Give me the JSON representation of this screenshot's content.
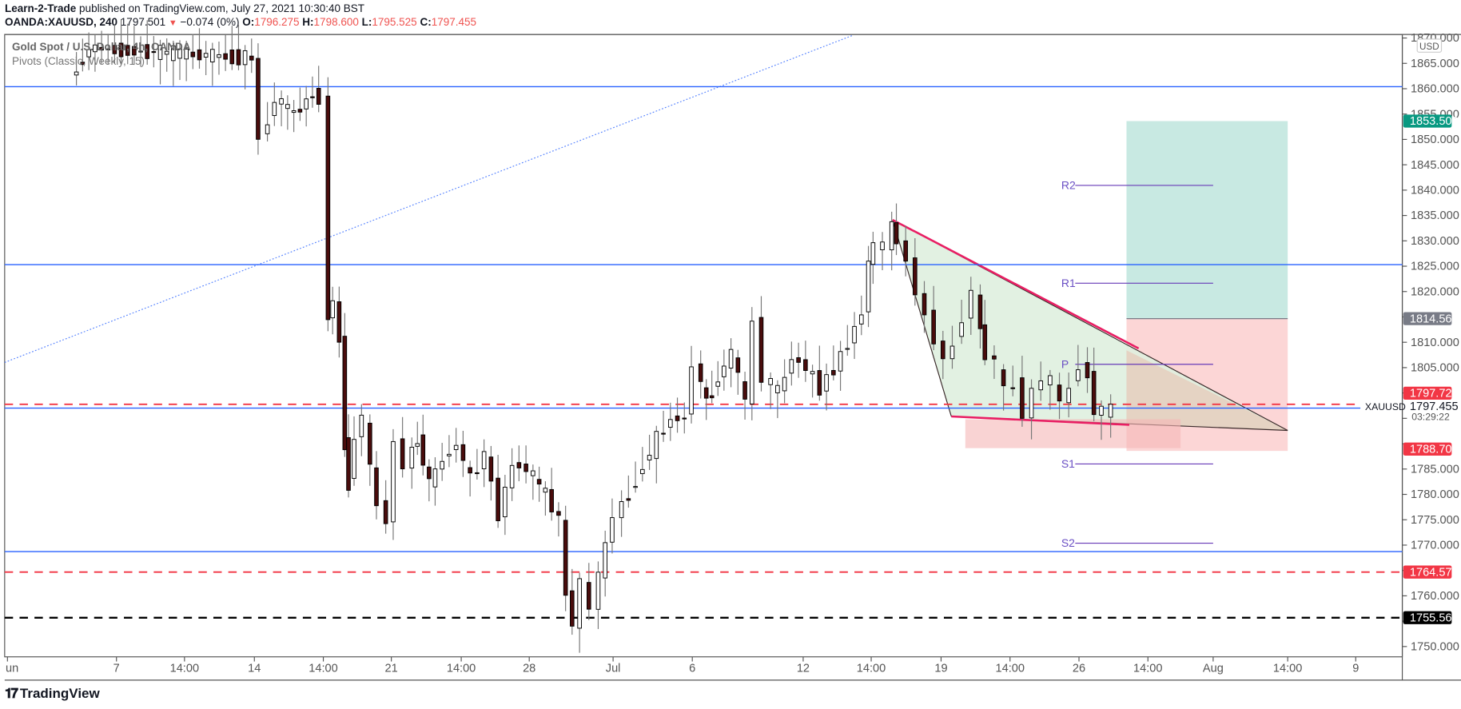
{
  "header": {
    "publisher": "Learn-2-Trade",
    "published_text": "published on TradingView.com, July 27, 2021 10:30:40 BST",
    "symbol_line": "OANDA:XAUUSD, 240",
    "last_price": "1797.501",
    "change": "−0.074 (0%)",
    "o_label": "O:",
    "o_value": "1796.275",
    "h_label": "H:",
    "h_value": "1798.600",
    "l_label": "L:",
    "l_value": "1795.525",
    "c_label": "C:",
    "c_value": "1797.455"
  },
  "legend": {
    "title": "Gold Spot / U.S. Dollar, 4h, OANDA",
    "indicator": "Pivots (Classic, Weekly, 15)"
  },
  "axis": {
    "currency": "USD",
    "ticks": [
      "1870.000",
      "1865.000",
      "1860.000",
      "1855.000",
      "1850.000",
      "1845.000",
      "1840.000",
      "1835.000",
      "1830.000",
      "1825.000",
      "1820.000",
      "1815.000",
      "1810.000",
      "1805.000",
      "1800.000",
      "1795.000",
      "1790.000",
      "1785.000",
      "1780.000",
      "1775.000",
      "1770.000",
      "1765.000",
      "1760.000",
      "1755.000",
      "1750.000"
    ],
    "price_tags": [
      {
        "value": "1853.500",
        "color": "#089981"
      },
      {
        "value": "1814.562",
        "color": "#787b86"
      },
      {
        "value": "1797.724",
        "color": "#f23645"
      },
      {
        "value": "1788.706",
        "color": "#f23645"
      },
      {
        "value": "1764.570",
        "color": "#f23645"
      },
      {
        "value": "1755.565",
        "color": "#000000"
      }
    ],
    "current_symbol": "XAUUSD",
    "current_price": "1797.455",
    "countdown": "03:29:22"
  },
  "time_axis": {
    "labels": [
      "Jun",
      "7",
      "14:00",
      "14",
      "14:00",
      "21",
      "14:00",
      "28",
      "Jul",
      "6",
      "12",
      "14:00",
      "19",
      "14:00",
      "26",
      "14:00",
      "Aug",
      "14:00",
      "9"
    ]
  },
  "pivots": {
    "R2": "R2",
    "R1": "R1",
    "P": "P",
    "S1": "S1",
    "S2": "S2"
  },
  "branding": {
    "logo_text": "TradingView"
  },
  "colors": {
    "up_candle": "#ffffff",
    "down_candle": "#4a0c0c",
    "horizontal_line": "#2962ff",
    "red_dashed": "#f23645",
    "black_dashed": "#000000",
    "pivot": "#673ab7",
    "trendline": "#e91e63",
    "profit_zone": "#c8e9e2",
    "loss_zone": "#fcd6d6",
    "triangle_fill": "#dff0df"
  },
  "chart_data": {
    "type": "candlestick",
    "title": "Gold Spot / U.S. Dollar, 4h, OANDA",
    "symbol": "OANDA:XAUUSD",
    "timeframe": "240",
    "ylim": [
      1748,
      1871
    ],
    "y_ticks": [
      1750,
      1755,
      1760,
      1765,
      1770,
      1775,
      1780,
      1785,
      1790,
      1795,
      1800,
      1805,
      1810,
      1815,
      1820,
      1825,
      1830,
      1835,
      1840,
      1845,
      1850,
      1855,
      1860,
      1865,
      1870
    ],
    "x_tick_labels": [
      "Jun",
      "7",
      "14:00",
      "14",
      "14:00",
      "21",
      "14:00",
      "28",
      "Jul",
      "6",
      "12",
      "14:00",
      "19",
      "14:00",
      "26",
      "14:00",
      "Aug",
      "14:00",
      "9"
    ],
    "horizontal_levels": [
      {
        "price": 1860.0,
        "style": "solid",
        "color": "#2962ff"
      },
      {
        "price": 1825.0,
        "style": "solid",
        "color": "#2962ff"
      },
      {
        "price": 1796.8,
        "style": "solid",
        "color": "#2962ff"
      },
      {
        "price": 1768.6,
        "style": "solid",
        "color": "#2962ff"
      },
      {
        "price": 1797.724,
        "style": "dashed",
        "color": "#f23645"
      },
      {
        "price": 1764.57,
        "style": "dashed",
        "color": "#f23645"
      },
      {
        "price": 1755.565,
        "style": "dashed",
        "color": "#000000"
      }
    ],
    "pivots_weekly": {
      "R2": 1840.7,
      "R1": 1821.5,
      "P": 1805.7,
      "S1": 1786.3,
      "S2": 1770.5
    },
    "position_tool": {
      "entry": 1814.562,
      "target": 1853.5,
      "stop": 1788.706
    },
    "ohlc_last": {
      "open": 1796.275,
      "high": 1798.6,
      "low": 1795.525,
      "close": 1797.455
    },
    "last_price": 1797.501,
    "change": -0.074,
    "pattern": "descending triangle / falling wedge with upper trendline from ~1834 and lower support ~1791"
  }
}
